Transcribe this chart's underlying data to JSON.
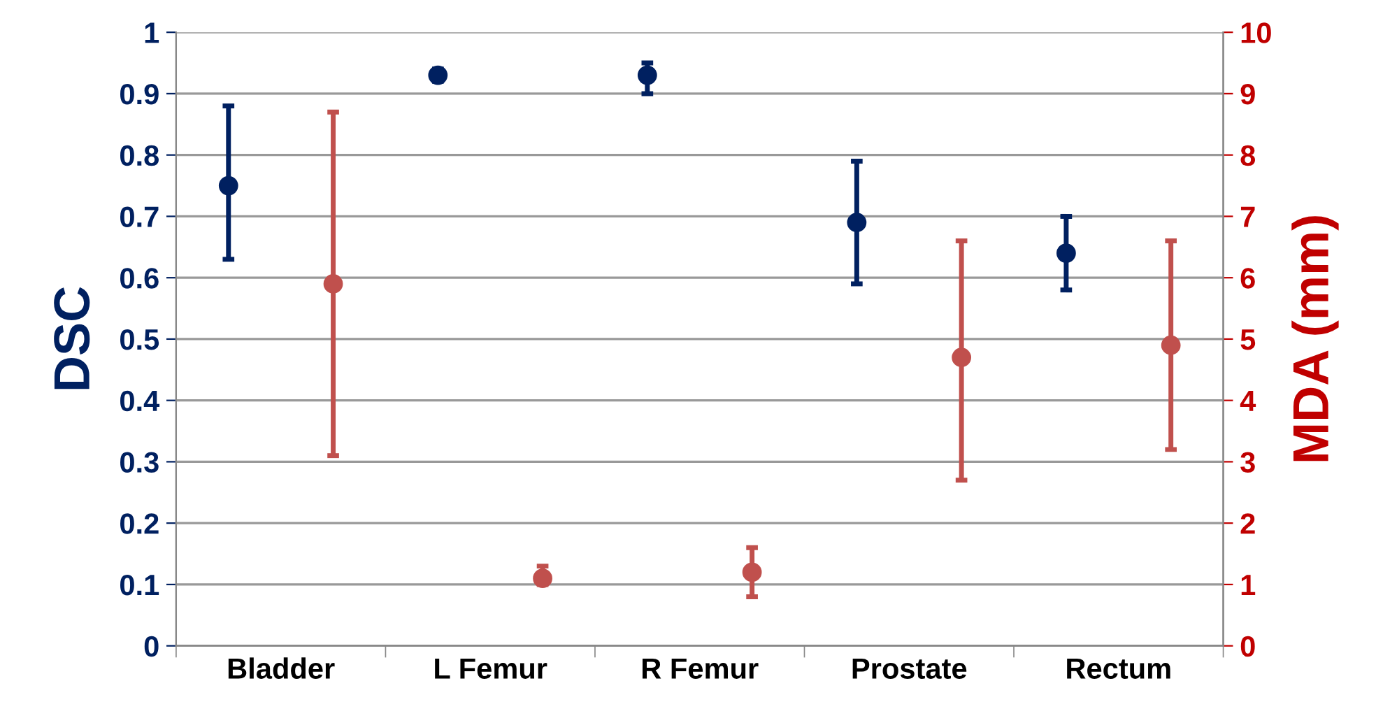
{
  "chart_data": {
    "type": "scatter",
    "ylabel": "DSC",
    "y2label": "MDA (mm)",
    "categories": [
      "Bladder",
      "L Femur",
      "R Femur",
      "Prostate",
      "Rectum"
    ],
    "series": [
      {
        "color": "#002060",
        "values": [
          0.75,
          0.93,
          0.93,
          0.69,
          0.64
        ],
        "errors": [
          [
            0.63,
            0.88
          ],
          [
            0.92,
            0.94
          ],
          [
            0.9,
            0.95
          ],
          [
            0.59,
            0.79
          ],
          [
            0.58,
            0.7
          ]
        ]
      },
      {
        "color": "#c0504d",
        "axis": "y2",
        "values": [
          5.9,
          1.1,
          1.2,
          4.7,
          4.9
        ],
        "errors": [
          [
            3.1,
            8.7
          ],
          [
            1.0,
            1.3
          ],
          [
            0.8,
            1.6
          ],
          [
            2.7,
            6.6
          ],
          [
            3.2,
            6.6
          ]
        ]
      }
    ],
    "ylim": [
      0,
      1
    ],
    "yticks": [
      0,
      0.1,
      0.2,
      0.3,
      0.4,
      0.5,
      0.6,
      0.7,
      0.8,
      0.9,
      1
    ],
    "y2lim": [
      0,
      10
    ],
    "y2ticks": [
      0,
      1,
      2,
      3,
      4,
      5,
      6,
      7,
      8,
      9,
      10
    ],
    "grid": "y",
    "marker": "circle"
  }
}
